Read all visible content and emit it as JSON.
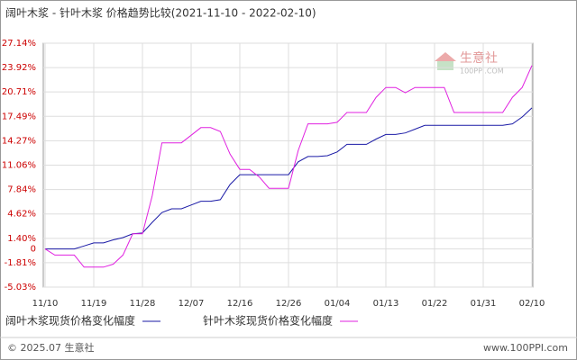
{
  "chart_data": {
    "type": "line",
    "title": "阔叶木浆 - 针叶木浆 价格趋势比较(2021-11-10 - 2022-02-10)",
    "categories": [
      "11/10",
      null,
      null,
      null,
      null,
      "11/19",
      null,
      null,
      null,
      null,
      "11/28",
      null,
      null,
      null,
      null,
      "12/07",
      null,
      null,
      null,
      null,
      "12/16",
      null,
      null,
      null,
      null,
      "12/26",
      null,
      null,
      null,
      null,
      "01/04",
      null,
      null,
      null,
      null,
      "01/13",
      null,
      null,
      null,
      null,
      "01/22",
      null,
      null,
      null,
      null,
      "01/31",
      null,
      null,
      null,
      null,
      "02/10"
    ],
    "series": [
      {
        "name": "阔叶木浆现货价格变化幅度",
        "color": "#1a1aa6",
        "values": [
          0,
          0,
          0,
          0,
          0.4,
          0.8,
          0.8,
          1.2,
          1.5,
          2.0,
          2.1,
          3.5,
          4.8,
          5.3,
          5.3,
          5.8,
          6.3,
          6.3,
          6.5,
          8.5,
          9.8,
          9.8,
          9.8,
          9.8,
          9.8,
          9.8,
          11.5,
          12.2,
          12.2,
          12.3,
          12.8,
          13.8,
          13.8,
          13.8,
          14.5,
          15.1,
          15.1,
          15.3,
          15.8,
          16.3,
          16.3,
          16.3,
          16.3,
          16.3,
          16.3,
          16.3,
          16.3,
          16.3,
          16.5,
          17.4,
          18.6
        ]
      },
      {
        "name": "针叶木浆现货价格变化幅度",
        "color": "#e020e0",
        "values": [
          0,
          -0.8,
          -0.8,
          -0.8,
          -2.4,
          -2.4,
          -2.4,
          -2.0,
          -0.8,
          2.0,
          2.0,
          7.0,
          14.0,
          14.0,
          14.0,
          15.0,
          16.0,
          16.0,
          15.5,
          12.5,
          10.5,
          10.5,
          9.5,
          8.0,
          8.0,
          8.0,
          13.0,
          16.5,
          16.5,
          16.5,
          16.7,
          18.0,
          18.0,
          18.0,
          20.0,
          21.3,
          21.3,
          20.6,
          21.3,
          21.3,
          21.3,
          21.3,
          18.0,
          18.0,
          18.0,
          18.0,
          18.0,
          18.0,
          20.0,
          21.3,
          24.2
        ]
      }
    ],
    "ylim": [
      -5.03,
      27.14
    ],
    "yticks": [
      {
        "value": -5.03,
        "label": "-5.03%"
      },
      {
        "value": -1.81,
        "label": "-1.81%"
      },
      0,
      {
        "value": 1.4,
        "label": "1.40%"
      },
      {
        "value": 4.62,
        "label": "4.62%"
      },
      {
        "value": 7.84,
        "label": "7.84%"
      },
      {
        "value": 11.06,
        "label": "11.06%"
      },
      {
        "value": 14.27,
        "label": "14.27%"
      },
      {
        "value": 17.49,
        "label": "17.49%"
      },
      {
        "value": 20.71,
        "label": "20.71%"
      },
      {
        "value": 23.92,
        "label": "23.92%"
      },
      {
        "value": 27.14,
        "label": "27.14%"
      }
    ],
    "grid": true,
    "logo": {
      "name": "生意社",
      "site": "100PPI.COM"
    },
    "footer": {
      "copyright": "© 2025.07 生意社",
      "url": "www.100PPI.com"
    }
  }
}
